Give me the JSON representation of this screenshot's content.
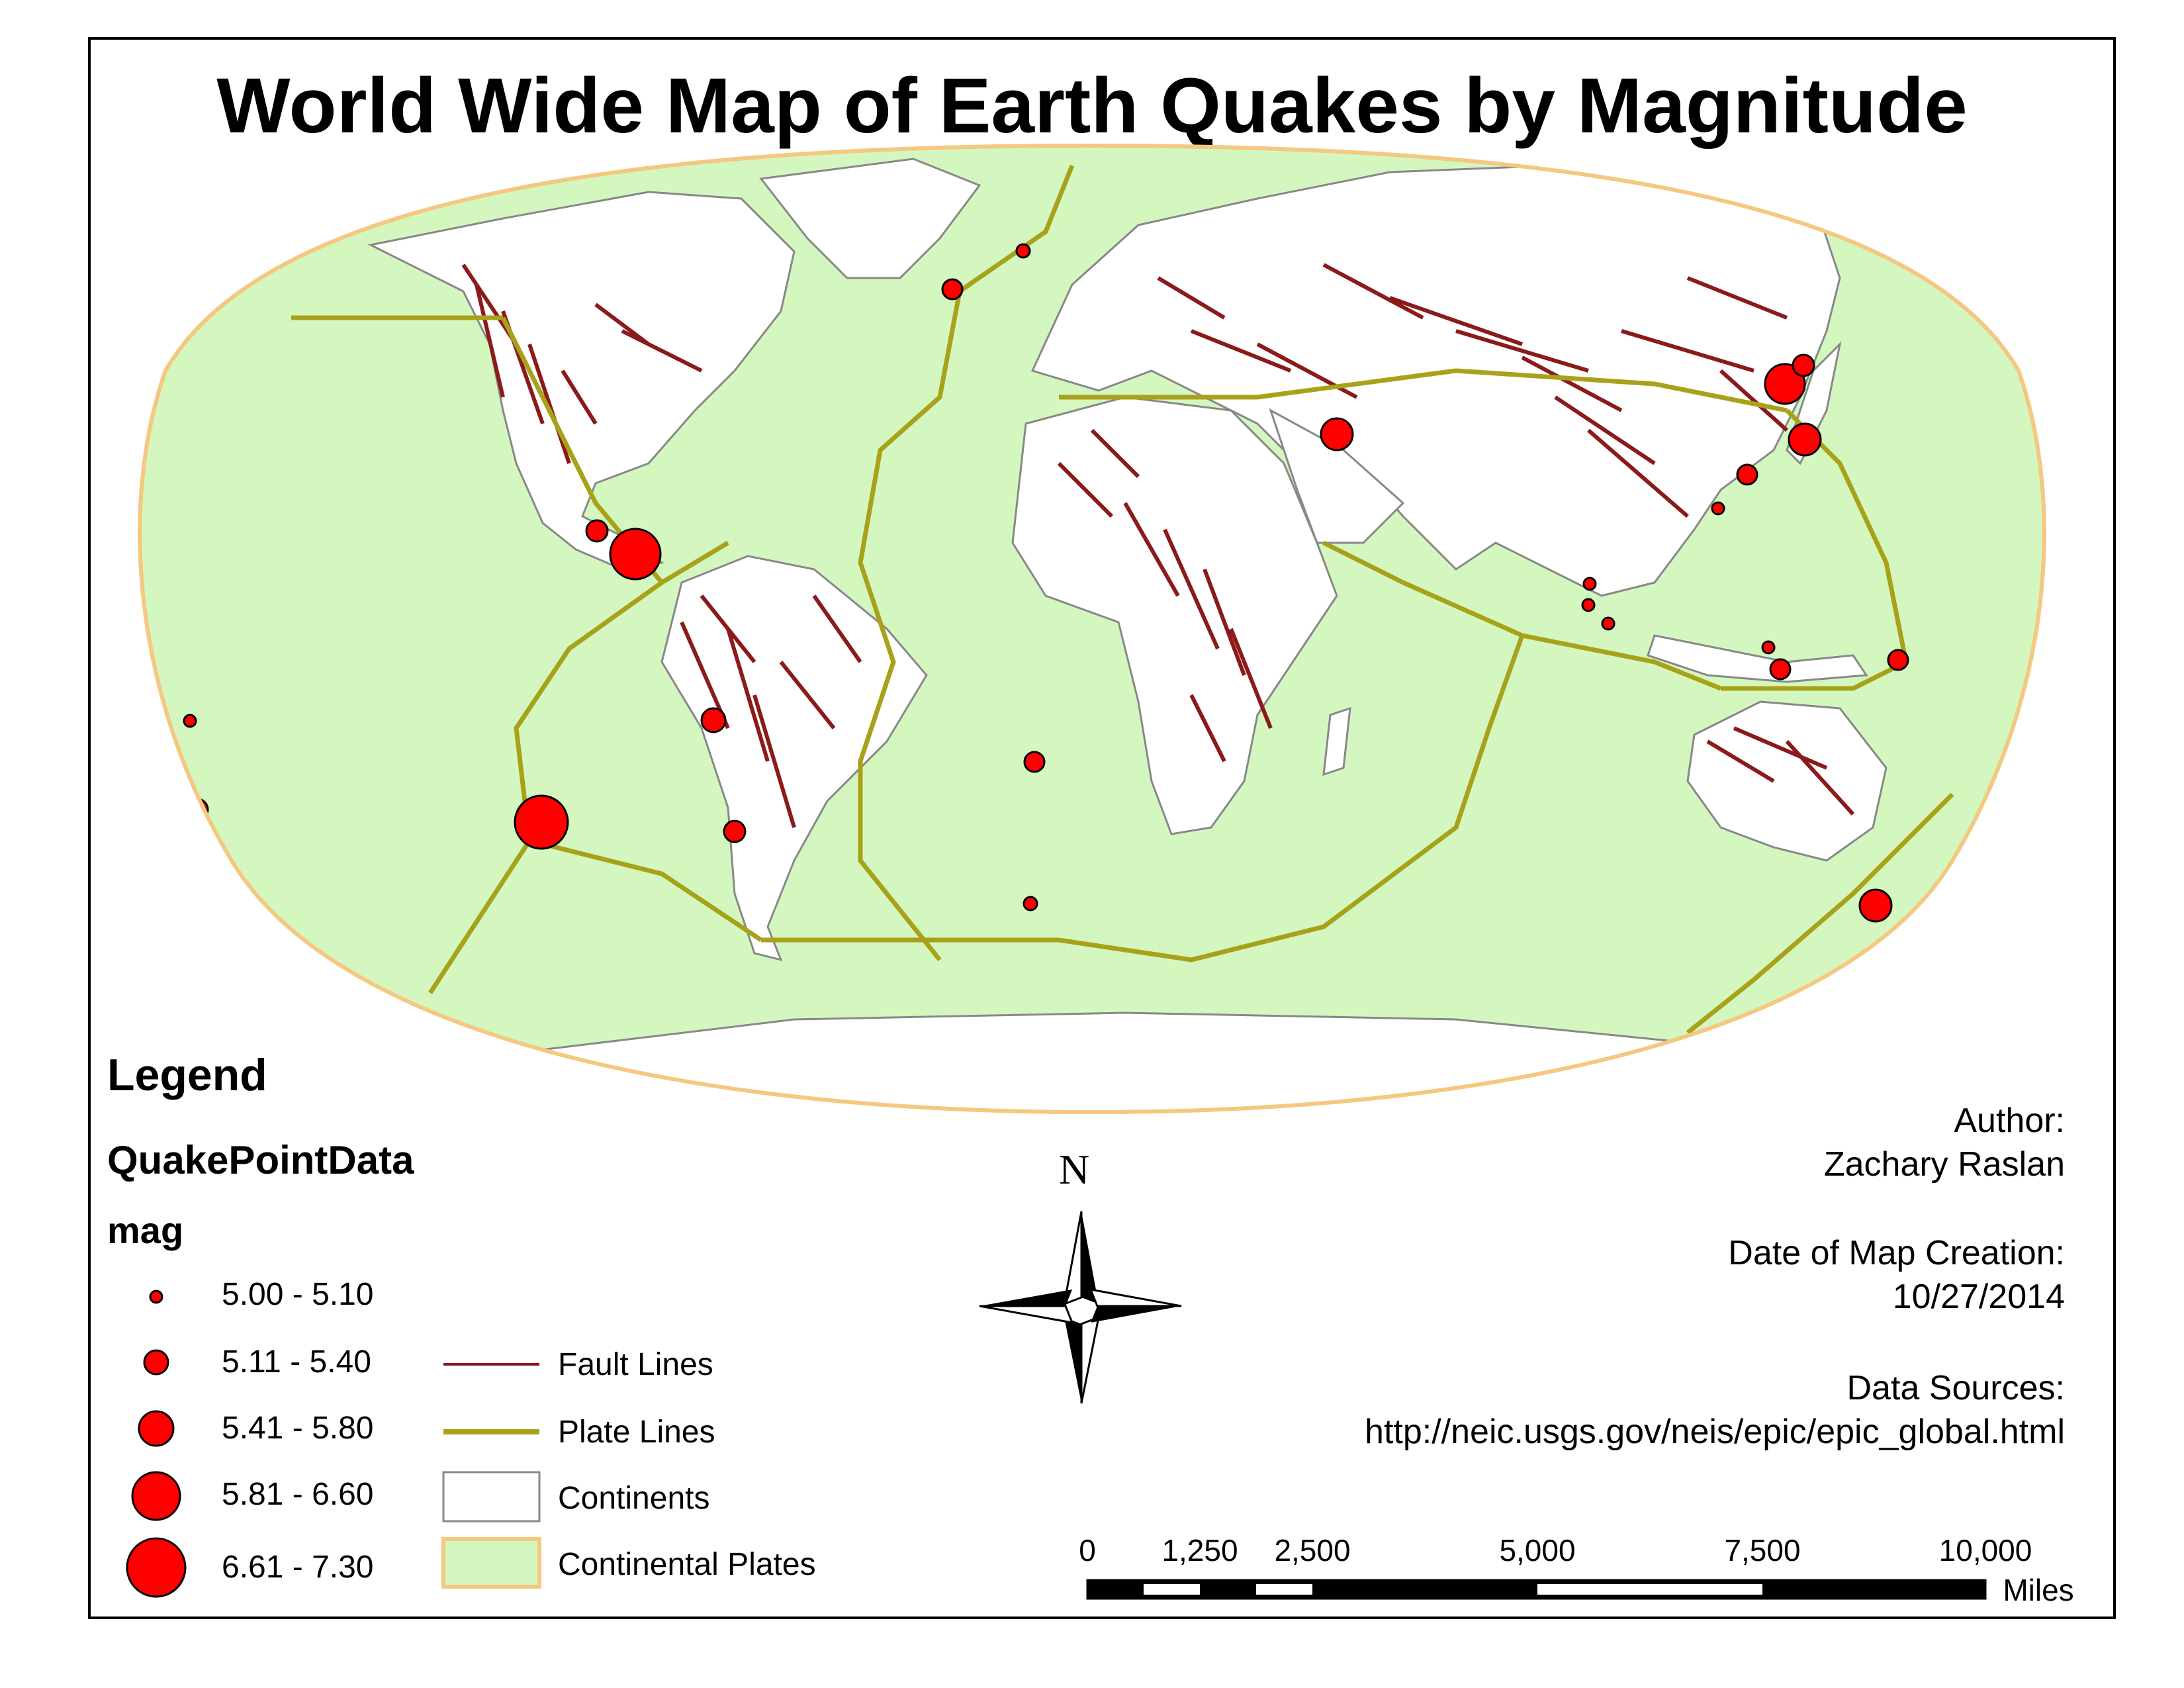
{
  "title": "World Wide Map of Earth Quakes by Magnitude",
  "legend": {
    "title": "Legend",
    "layer": "QuakePointData",
    "field": "mag",
    "mag_classes": [
      {
        "label": "5.00 - 5.10"
      },
      {
        "label": "5.11 - 5.40"
      },
      {
        "label": "5.41 - 5.80"
      },
      {
        "label": "5.81 - 6.60"
      },
      {
        "label": "6.61 - 7.30"
      }
    ],
    "layers": [
      {
        "label": "Fault Lines",
        "color": "#8b1a1a"
      },
      {
        "label": "Plate Lines",
        "color": "#a8a21a"
      },
      {
        "label": "Continents",
        "color": "#ffffff"
      },
      {
        "label": "Continental Plates",
        "color": "#d4f7c0"
      }
    ]
  },
  "info": {
    "author_label": "Author:",
    "author": "Zachary Raslan",
    "date_label": "Date of Map Creation:",
    "date": "10/27/2014",
    "sources_label": "Data Sources:",
    "source_url": "http://neic.usgs.gov/neis/epic/epic_global.html"
  },
  "north_arrow": {
    "label": "N"
  },
  "scale_bar": {
    "ticks": [
      "0",
      "1,250",
      "2,500",
      "5,000",
      "7,500",
      "10,000"
    ],
    "unit": "Miles"
  },
  "colors": {
    "ocean_plate": "#d4f7c0",
    "continent": "#ffffff",
    "fault": "#8b1a1a",
    "plate_line": "#a8a21a",
    "quake": "#ff0000",
    "map_outline": "#f5c882"
  }
}
